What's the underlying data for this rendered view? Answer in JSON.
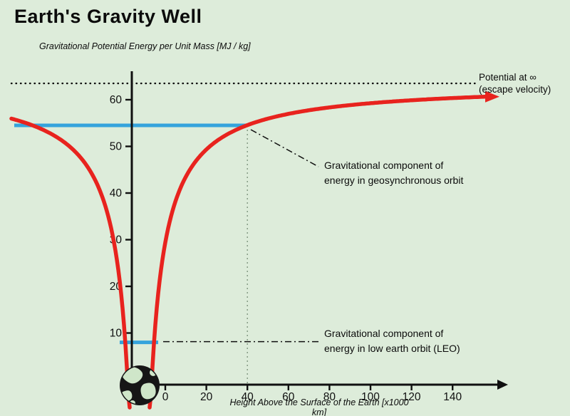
{
  "title": "Earth's Gravity Well",
  "y_axis_label": "Gravitational Potential Energy per Unit Mass [MJ / kg]",
  "x_axis_label": "Height Above the Surface of the Earth [x1000 km]",
  "escape_label_line1": "Potential at ∞",
  "escape_label_line2": "(escape velocity)",
  "geo_note_line1": "Gravitational component of",
  "geo_note_line2": "energy in geosynchronous orbit",
  "leo_note_line1": "Gravitational component of",
  "leo_note_line2": "energy in low earth orbit (LEO)",
  "chart_data": {
    "type": "line",
    "title": "Earth's Gravity Well",
    "xlabel": "Height Above the Surface of the Earth [x1000 km]",
    "ylabel": "Gravitational Potential Energy per Unit Mass [MJ / kg]",
    "x_ticks": [
      0,
      20,
      40,
      60,
      80,
      100,
      120,
      140
    ],
    "y_ticks": [
      10,
      20,
      30,
      40,
      50,
      60
    ],
    "xlim": [
      0,
      150
    ],
    "ylim": [
      0,
      65
    ],
    "escape_potential": 63.5,
    "geosynchronous_energy": 54.5,
    "geosynchronous_height": 40,
    "leo_energy": 8,
    "curve_model": "U(h) = U_inf * h / (h + R), gravity well symmetric about Earth at origin",
    "colors": {
      "curve": "#e8231e",
      "orbit_lines": "#35a3dc",
      "background": "#ddecda",
      "axis": "#101010",
      "guide": "#7f957f",
      "land": "#cfe6c9",
      "globe": "#161616"
    }
  }
}
